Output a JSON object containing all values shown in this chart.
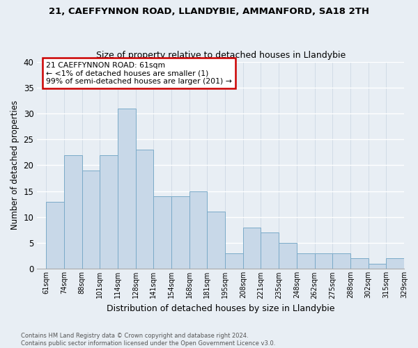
{
  "title": "21, CAEFFYNNON ROAD, LLANDYBIE, AMMANFORD, SA18 2TH",
  "subtitle": "Size of property relative to detached houses in Llandybie",
  "xlabel": "Distribution of detached houses by size in Llandybie",
  "ylabel": "Number of detached properties",
  "bar_values": [
    13,
    22,
    19,
    22,
    31,
    23,
    14,
    14,
    15,
    11,
    3,
    8,
    7,
    5,
    3,
    3,
    3,
    2,
    1,
    2
  ],
  "bar_labels": [
    "61sqm",
    "74sqm",
    "88sqm",
    "101sqm",
    "114sqm",
    "128sqm",
    "141sqm",
    "154sqm",
    "168sqm",
    "181sqm",
    "195sqm",
    "208sqm",
    "221sqm",
    "235sqm",
    "248sqm",
    "262sqm",
    "275sqm",
    "288sqm",
    "302sqm",
    "315sqm",
    "329sqm"
  ],
  "bar_color": "#c8d8e8",
  "bar_edge_color": "#7aaac8",
  "background_color": "#e8eef4",
  "annotation_text": "21 CAEFFYNNON ROAD: 61sqm\n← <1% of detached houses are smaller (1)\n99% of semi-detached houses are larger (201) →",
  "annotation_box_color": "#ffffff",
  "annotation_box_edge": "#cc0000",
  "footnote": "Contains HM Land Registry data © Crown copyright and database right 2024.\nContains public sector information licensed under the Open Government Licence v3.0.",
  "ylim": [
    0,
    40
  ],
  "yticks": [
    0,
    5,
    10,
    15,
    20,
    25,
    30,
    35,
    40
  ]
}
